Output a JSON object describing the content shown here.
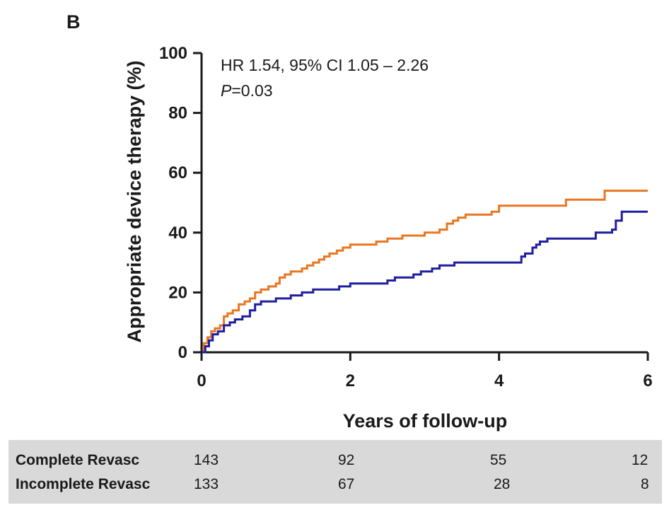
{
  "panel_label": "B",
  "colors": {
    "incomplete": "#e87722",
    "complete": "#1f1f9e",
    "axis": "#1a1a1a",
    "risk_table_bg": "#d9d9d9"
  },
  "chart_data": {
    "type": "line",
    "step": true,
    "title": "",
    "xlabel": "Years of follow-up",
    "ylabel": "Appropriate device therapy (%)",
    "xlim": [
      0,
      6
    ],
    "ylim": [
      0,
      100
    ],
    "xticks": [
      "0",
      "2",
      "4",
      "6"
    ],
    "yticks": [
      "0",
      "20",
      "40",
      "60",
      "80",
      "100"
    ],
    "grid": false,
    "legend": "none",
    "annotation": {
      "hr_text": "HR 1.54, 95% CI 1.05 – 2.26",
      "p_label": "P",
      "p_value": "=0.03"
    },
    "series": [
      {
        "key": "incomplete",
        "x": [
          0,
          0.03,
          0.08,
          0.13,
          0.18,
          0.25,
          0.3,
          0.35,
          0.42,
          0.5,
          0.58,
          0.65,
          0.72,
          0.8,
          0.9,
          1.0,
          1.05,
          1.12,
          1.2,
          1.35,
          1.42,
          1.5,
          1.58,
          1.65,
          1.72,
          1.82,
          1.9,
          2.0,
          2.35,
          2.5,
          2.7,
          3.0,
          3.2,
          3.3,
          3.38,
          3.45,
          3.55,
          3.9,
          4.0,
          4.2,
          4.45,
          4.9,
          5.0,
          5.42,
          5.55,
          6.0
        ],
        "y": [
          0,
          3,
          5,
          7,
          8,
          9,
          12,
          13,
          14,
          16,
          17,
          18,
          20,
          21,
          22,
          23,
          25,
          26,
          27,
          28,
          29,
          30,
          31,
          32,
          33,
          34,
          35,
          36,
          37,
          38,
          39,
          40,
          41,
          43,
          44,
          45,
          46,
          47,
          49,
          49,
          49,
          51,
          51,
          54,
          54,
          54
        ]
      },
      {
        "key": "complete",
        "x": [
          0,
          0.05,
          0.1,
          0.15,
          0.22,
          0.3,
          0.38,
          0.45,
          0.55,
          0.65,
          0.72,
          0.8,
          1.0,
          1.2,
          1.35,
          1.5,
          1.7,
          1.85,
          2.0,
          2.2,
          2.5,
          2.6,
          2.85,
          2.95,
          3.1,
          3.2,
          3.3,
          3.4,
          4.2,
          4.3,
          4.35,
          4.45,
          4.5,
          4.55,
          4.65,
          4.85,
          5.1,
          5.3,
          5.52,
          5.57,
          5.65,
          6.0
        ],
        "y": [
          0,
          2,
          4,
          6,
          7,
          9,
          10,
          11,
          12,
          14,
          16,
          17,
          18,
          19,
          20,
          21,
          21,
          22,
          23,
          23,
          24,
          25,
          26,
          27,
          28,
          29,
          29,
          30,
          30,
          32,
          33,
          35,
          36,
          37,
          38,
          38,
          38,
          40,
          41,
          44,
          47,
          47
        ]
      }
    ]
  },
  "risk_table": {
    "rows": [
      {
        "label": "Complete Revasc",
        "values": [
          "143",
          "92",
          "55",
          "12"
        ]
      },
      {
        "label": "Incomplete Revasc",
        "values": [
          "133",
          "67",
          "28",
          "8"
        ]
      }
    ]
  }
}
